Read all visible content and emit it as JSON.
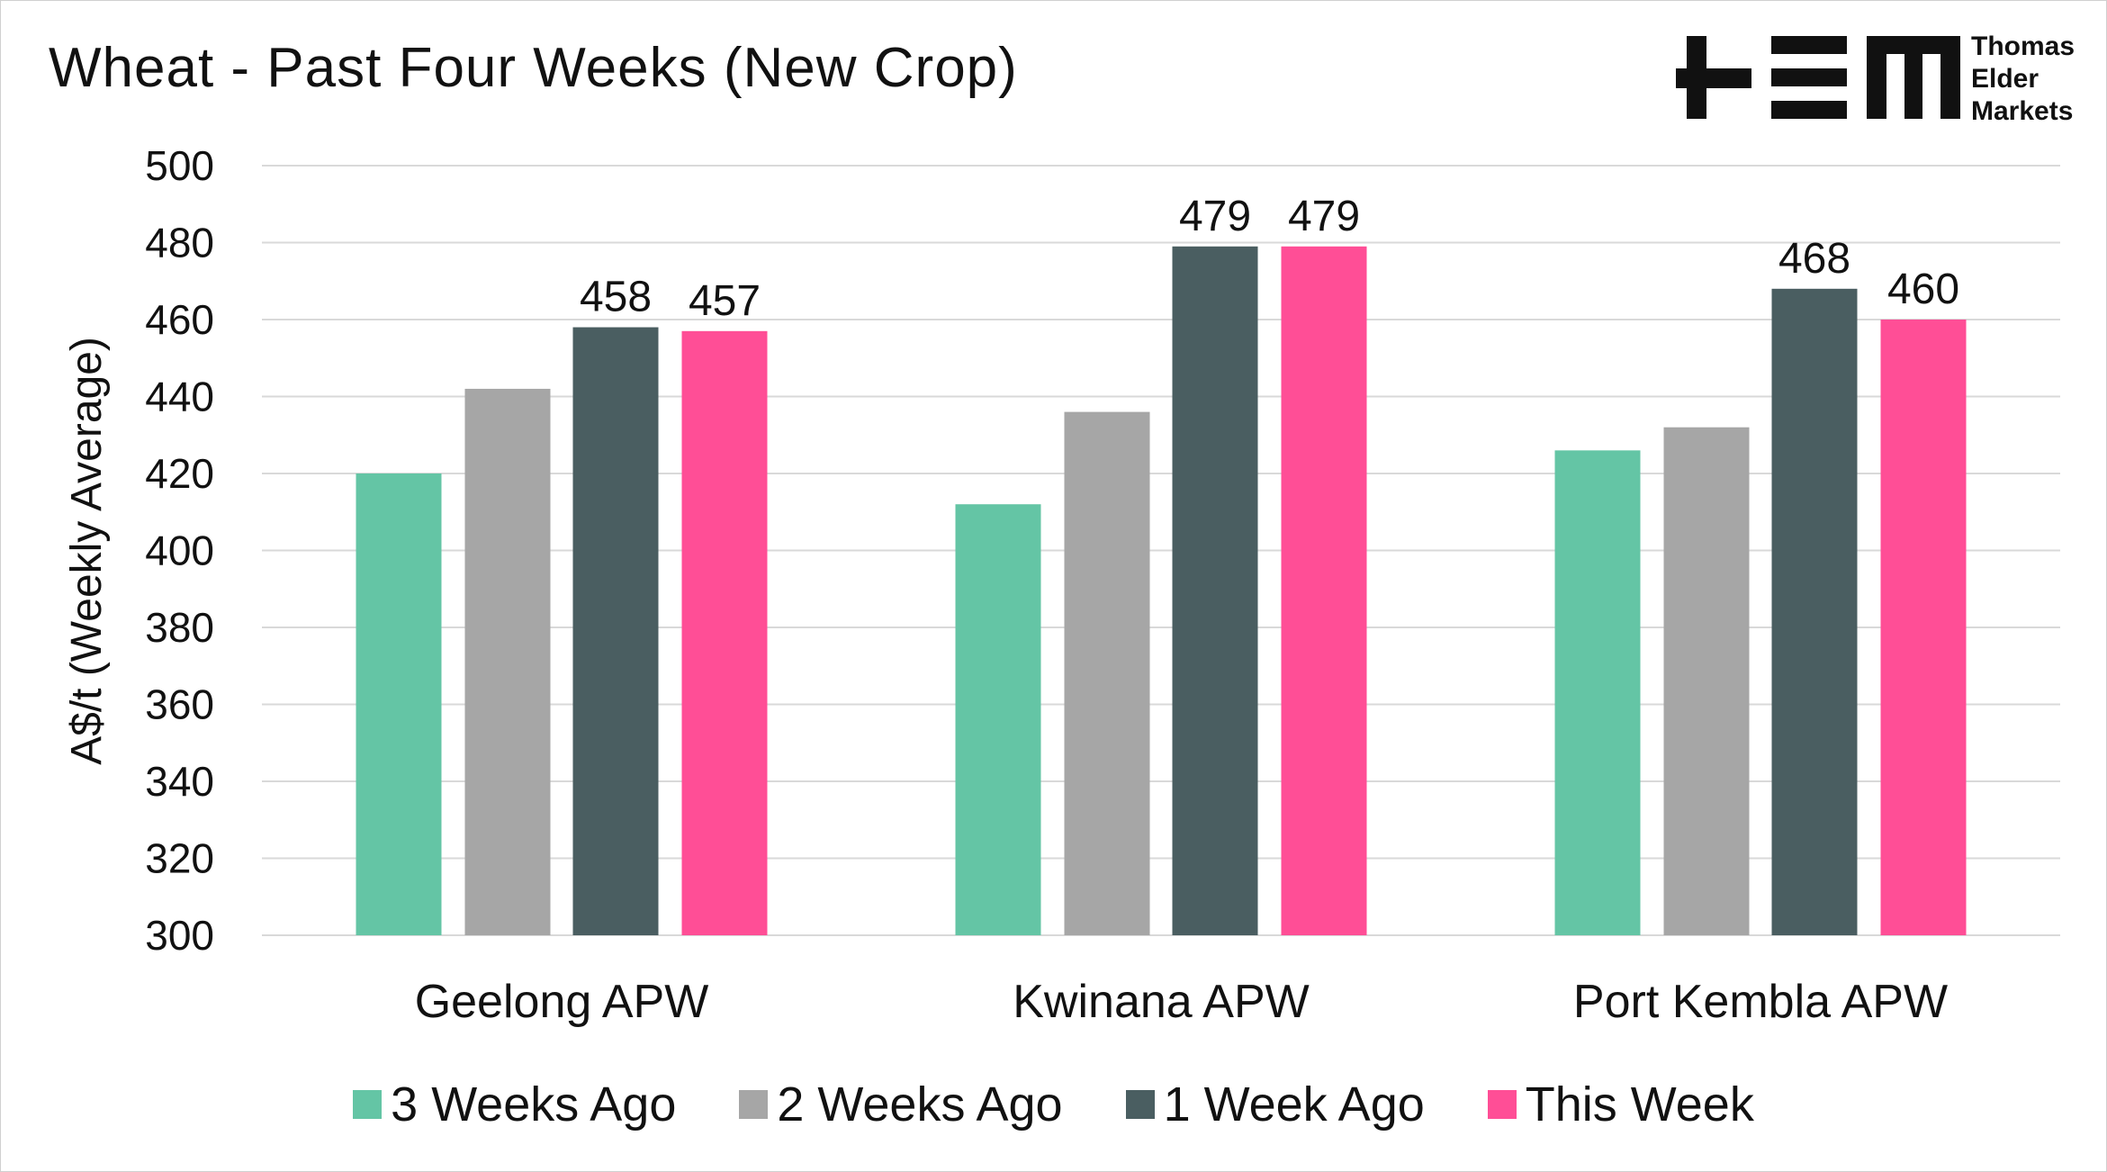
{
  "title": "Wheat - Past Four Weeks (New Crop)",
  "logo": {
    "text_lines": [
      "Thomas",
      "Elder",
      "Markets"
    ]
  },
  "chart_data": {
    "type": "bar",
    "title": "Wheat - Past Four Weeks (New Crop)",
    "xlabel": "",
    "ylabel": "A$/t (Weekly Average)",
    "ylim": [
      300,
      500
    ],
    "yticks": [
      300,
      320,
      340,
      360,
      380,
      400,
      420,
      440,
      460,
      480,
      500
    ],
    "grid": true,
    "legend_position": "bottom",
    "categories": [
      "Geelong APW",
      "Kwinana APW",
      "Port Kembla APW"
    ],
    "series": [
      {
        "name": "3 Weeks Ago",
        "color": "#64c5a5",
        "values": [
          420,
          412,
          426
        ],
        "labels": [
          null,
          null,
          null
        ]
      },
      {
        "name": "2 Weeks Ago",
        "color": "#a6a6a6",
        "values": [
          442,
          436,
          432
        ],
        "labels": [
          null,
          null,
          null
        ]
      },
      {
        "name": "1 Week Ago",
        "color": "#4a5e61",
        "values": [
          458,
          479,
          468
        ],
        "labels": [
          "458",
          "479",
          "468"
        ]
      },
      {
        "name": "This Week",
        "color": "#ff4e96",
        "values": [
          457,
          479,
          460
        ],
        "labels": [
          "457",
          "479",
          "460"
        ]
      }
    ]
  }
}
